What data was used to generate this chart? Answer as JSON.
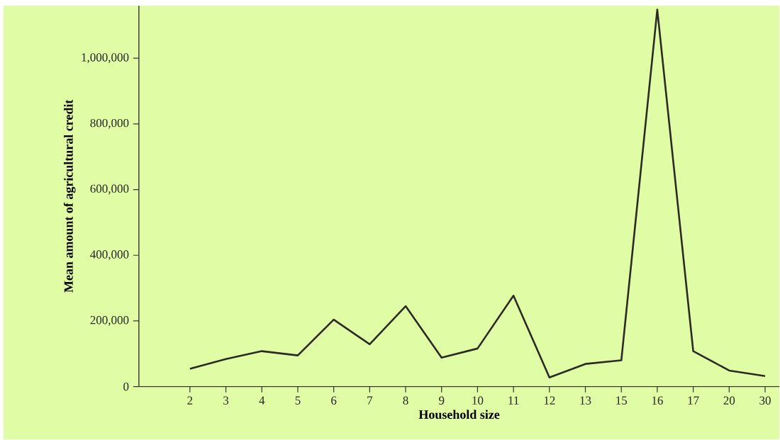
{
  "chart_data": {
    "type": "line",
    "xlabel": "Household size",
    "ylabel": "Mean amount of agricultural credit",
    "categories": [
      "2",
      "3",
      "4",
      "5",
      "6",
      "7",
      "8",
      "9",
      "10",
      "11",
      "12",
      "13",
      "15",
      "16",
      "17",
      "20",
      "30"
    ],
    "series": [
      {
        "color": "#2b2b25",
        "values": [
          54000,
          84000,
          108000,
          95000,
          204000,
          129000,
          245000,
          88000,
          116000,
          277000,
          28000,
          69000,
          80000,
          1148000,
          108000,
          49000,
          32000
        ]
      }
    ],
    "ylim": [
      0,
      1160000
    ],
    "yticks": [
      0,
      {
        "value": 200000,
        "label": "200,000"
      },
      {
        "value": 400000,
        "label": "400,000"
      },
      {
        "value": 600000,
        "label": "600,000"
      },
      {
        "value": 800000,
        "label": "800,000"
      },
      {
        "value": 1000000,
        "label": "1,000,000"
      }
    ],
    "grid": false,
    "marker": "none",
    "line_style": "solid"
  }
}
